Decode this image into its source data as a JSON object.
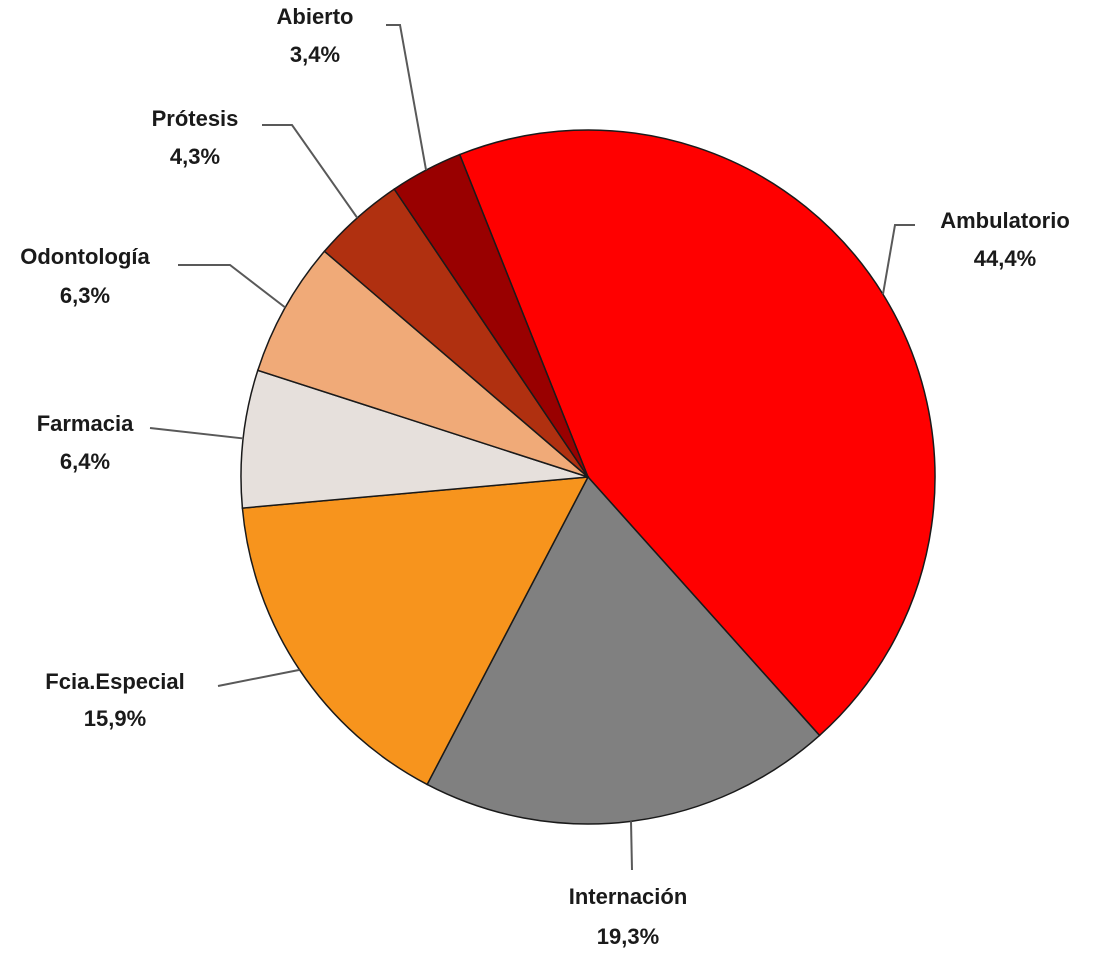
{
  "chart_data": {
    "type": "pie",
    "categories": [
      "Ambulatorio",
      "Internación",
      "Fcia.Especial",
      "Farmacia",
      "Odontología",
      "Prótesis",
      "Abierto"
    ],
    "values": [
      44.4,
      19.3,
      15.9,
      6.4,
      6.3,
      4.3,
      3.4
    ],
    "value_labels": [
      "44,4%",
      "19,3%",
      "15,9%",
      "6,4%",
      "6,3%",
      "4,3%",
      "3,4%"
    ],
    "colors": [
      "#ff0000",
      "#808080",
      "#f7941d",
      "#e6e0dc",
      "#f0aa78",
      "#b03010",
      "#990000"
    ]
  }
}
